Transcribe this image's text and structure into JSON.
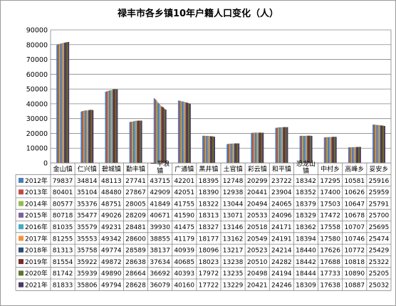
{
  "chart_data": {
    "type": "bar",
    "title": "禄丰市各乡镇10年户籍人口变化（人）",
    "ylim": [
      0,
      90000
    ],
    "yticks": [
      0,
      10000,
      20000,
      30000,
      40000,
      50000,
      60000,
      70000,
      80000,
      90000
    ],
    "grid": true,
    "legend": "table",
    "categories": [
      "金山镇",
      "仁兴镇",
      "碧城镇",
      "勤丰镇",
      "一平浪镇",
      "广通镇",
      "黑井镇",
      "土官镇",
      "彩云镇",
      "和平镇",
      "恐龙山镇",
      "中村乡",
      "高峰乡",
      "妥安乡"
    ],
    "series": [
      {
        "name": "2012年",
        "color": "#4a7ebb",
        "values": [
          79837,
          34814,
          48113,
          27741,
          43715,
          42201,
          18395,
          12748,
          20299,
          23722,
          18342,
          17295,
          10581,
          25916
        ]
      },
      {
        "name": "2013年",
        "color": "#be4b48",
        "values": [
          80401,
          35104,
          48480,
          27867,
          42909,
          42051,
          18390,
          12938,
          20441,
          23904,
          18352,
          17400,
          10626,
          25959
        ]
      },
      {
        "name": "2014年",
        "color": "#98b954",
        "values": [
          80577,
          35376,
          48751,
          28005,
          41849,
          41755,
          18322,
          13044,
          20494,
          24065,
          18379,
          17503,
          10647,
          25791
        ]
      },
      {
        "name": "2015年",
        "color": "#7d60a0",
        "values": [
          80718,
          35477,
          49026,
          28209,
          40671,
          41590,
          18313,
          13071,
          20533,
          24096,
          18329,
          17472,
          10678,
          25700
        ]
      },
      {
        "name": "2016年",
        "color": "#46aac5",
        "values": [
          81035,
          35579,
          49231,
          28481,
          39930,
          41475,
          18327,
          13146,
          20518,
          24171,
          18362,
          17558,
          10707,
          25695
        ]
      },
      {
        "name": "2017年",
        "color": "#f69240",
        "values": [
          81255,
          35553,
          49342,
          28600,
          38855,
          41179,
          18177,
          13162,
          20549,
          24191,
          18394,
          17580,
          10746,
          25474
        ]
      },
      {
        "name": "2018年",
        "color": "#2c4d75",
        "values": [
          81313,
          35758,
          49774,
          28589,
          38137,
          40939,
          18096,
          13217,
          20523,
          24214,
          18440,
          17626,
          10772,
          25429
        ]
      },
      {
        "name": "2019年",
        "color": "#772c2a",
        "values": [
          81554,
          35922,
          49872,
          28638,
          37634,
          40685,
          18023,
          13238,
          20510,
          24282,
          18442,
          17688,
          10818,
          25322
        ]
      },
      {
        "name": "2020年",
        "color": "#5f7530",
        "values": [
          81742,
          35939,
          49890,
          28664,
          36692,
          40393,
          17972,
          13235,
          20498,
          24194,
          18444,
          17733,
          10890,
          25205
        ]
      },
      {
        "name": "2021年",
        "color": "#4b3a62",
        "values": [
          81833,
          35806,
          49794,
          28628,
          36079,
          40160,
          17722,
          13229,
          20421,
          24246,
          18309,
          17638,
          10887,
          25032
        ]
      }
    ]
  }
}
